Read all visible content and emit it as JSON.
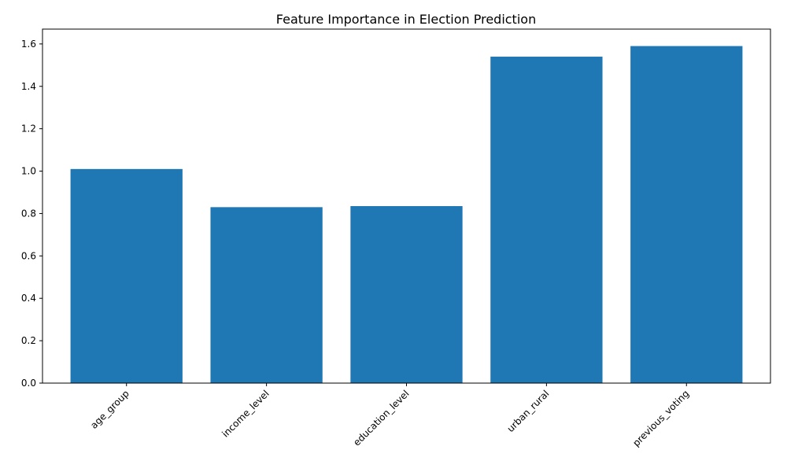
{
  "chart_data": {
    "type": "bar",
    "title": "Feature Importance in Election Prediction",
    "xlabel": "",
    "ylabel": "",
    "categories": [
      "age_group",
      "income_level",
      "education_level",
      "urban_rural",
      "previous_voting"
    ],
    "values": [
      1.01,
      0.83,
      0.835,
      1.54,
      1.59
    ],
    "ylim": [
      0,
      1.67
    ],
    "yticks": [
      0.0,
      0.2,
      0.4,
      0.6,
      0.8,
      1.0,
      1.2,
      1.4,
      1.6
    ],
    "ytick_labels": [
      "0.0",
      "0.2",
      "0.4",
      "0.6",
      "0.8",
      "1.0",
      "1.2",
      "1.4",
      "1.6"
    ],
    "xtick_rotation_deg": 45,
    "grid": false,
    "bar_color": "#1f77b4"
  }
}
